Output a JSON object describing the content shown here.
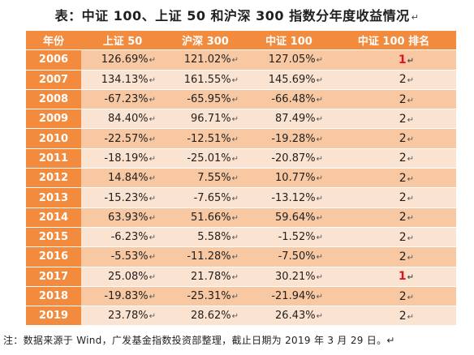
{
  "title": "表：中证 100、上证 50 和沪深 300 指数分年度收益情况",
  "return_mark": "↵",
  "header": [
    "年份",
    "上证 50",
    "沪深 300",
    "中证 100",
    "中证 100 排名"
  ],
  "rows": [
    {
      "year": "2006",
      "sz50": "126.69%",
      "hs300": "121.02%",
      "zz100": "127.05%",
      "rank": "1",
      "rank_highlight": true
    },
    {
      "year": "2007",
      "sz50": "134.13%",
      "hs300": "161.55%",
      "zz100": "145.69%",
      "rank": "2",
      "rank_highlight": false
    },
    {
      "year": "2008",
      "sz50": "-67.23%",
      "hs300": "-65.95%",
      "zz100": "-66.48%",
      "rank": "2",
      "rank_highlight": false
    },
    {
      "year": "2009",
      "sz50": "84.40%",
      "hs300": "96.71%",
      "zz100": "87.49%",
      "rank": "2",
      "rank_highlight": false
    },
    {
      "year": "2010",
      "sz50": "-22.57%",
      "hs300": "-12.51%",
      "zz100": "-19.28%",
      "rank": "2",
      "rank_highlight": false
    },
    {
      "year": "2011",
      "sz50": "-18.19%",
      "hs300": "-25.01%",
      "zz100": "-20.87%",
      "rank": "2",
      "rank_highlight": false
    },
    {
      "year": "2012",
      "sz50": "14.84%",
      "hs300": "7.55%",
      "zz100": "10.77%",
      "rank": "2",
      "rank_highlight": false
    },
    {
      "year": "2013",
      "sz50": "-15.23%",
      "hs300": "-7.65%",
      "zz100": "-13.12%",
      "rank": "2",
      "rank_highlight": false
    },
    {
      "year": "2014",
      "sz50": "63.93%",
      "hs300": "51.66%",
      "zz100": "59.64%",
      "rank": "2",
      "rank_highlight": false
    },
    {
      "year": "2015",
      "sz50": "-6.23%",
      "hs300": "5.58%",
      "zz100": "-1.52%",
      "rank": "2",
      "rank_highlight": false
    },
    {
      "year": "2016",
      "sz50": "-5.53%",
      "hs300": "-11.28%",
      "zz100": "-7.50%",
      "rank": "2",
      "rank_highlight": false
    },
    {
      "year": "2017",
      "sz50": "25.08%",
      "hs300": "21.78%",
      "zz100": "30.21%",
      "rank": "1",
      "rank_highlight": true
    },
    {
      "year": "2018",
      "sz50": "-19.83%",
      "hs300": "-25.31%",
      "zz100": "-21.94%",
      "rank": "2",
      "rank_highlight": false
    },
    {
      "year": "2019",
      "sz50": "23.78%",
      "hs300": "28.62%",
      "zz100": "26.43%",
      "rank": "2",
      "rank_highlight": false
    }
  ],
  "note": "注：数据来源于 Wind，广发基金指数投资部整理，截止日期为 2019 年 3 月 29 日。",
  "colors": {
    "header_bg": "#f28b3e",
    "row_dark": "#f7c8a2",
    "row_light": "#fbe3d2",
    "rank_highlight": "#e0121f"
  }
}
